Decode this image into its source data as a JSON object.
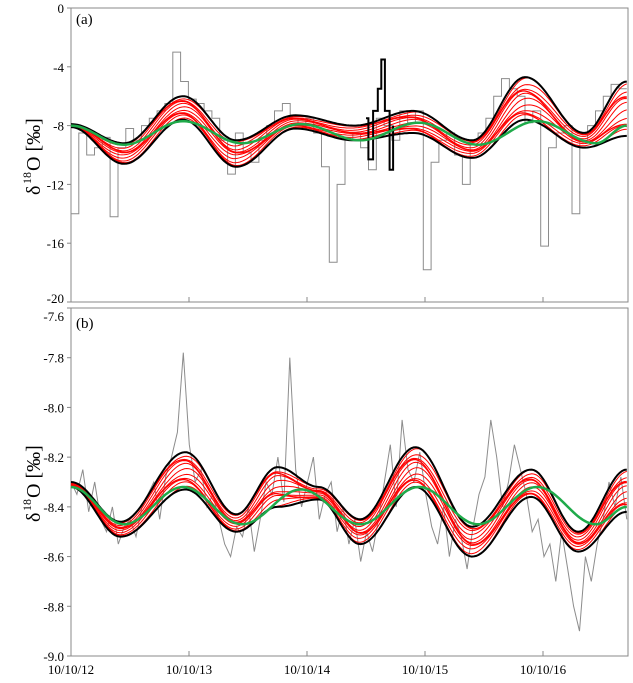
{
  "chart_data": [
    {
      "type": "line",
      "panel_label": "(a)",
      "ylabel": {
        "main": "δ",
        "sup": "18",
        "rest": "O [‰]"
      },
      "ylim": [
        -20,
        0
      ],
      "yticks": [
        0,
        -4,
        -8,
        -12,
        -16,
        -20
      ],
      "ytick_labels": [
        "0",
        "-4",
        "-8",
        "-12",
        "-16",
        "-20"
      ],
      "xlim_years": [
        0,
        4.71
      ],
      "colors": {
        "raw": "#8c8c8c",
        "ensemble": "#ff0000",
        "envelope": "#000000",
        "fit": "#1faa4a"
      },
      "raw_step_values": [
        -14,
        -8.5,
        -10,
        -9.5,
        -8.8,
        -14.2,
        -9.5,
        -8.2,
        -9,
        -8,
        -7.5,
        -7,
        -6.5,
        -3.0,
        -5,
        -6.2,
        -6.5,
        -7,
        -7.5,
        -9,
        -11.3,
        -8.5,
        -9.8,
        -10.5,
        -9,
        -8,
        -7,
        -6.5,
        -7.5,
        -8,
        -7.5,
        -8.5,
        -10.8,
        -17.3,
        -12,
        -9,
        -8.5,
        -9.5,
        -11,
        -7.5,
        -8,
        -9,
        -7,
        -7.8,
        -7,
        -17.8,
        -10.5,
        -9,
        -8.5,
        -10,
        -12,
        -9,
        -8.5,
        -7.5,
        -6,
        -4.8,
        -5.5,
        -6,
        -7.8,
        -7,
        -16.2,
        -9.5,
        -8.5,
        -8,
        -14,
        -9,
        -8,
        -7,
        -6,
        -5.2,
        -5.5
      ],
      "envelope": {
        "x": [
          0,
          0.45,
          0.95,
          1.4,
          1.9,
          2.4,
          2.9,
          3.4,
          3.85,
          4.35,
          4.71
        ],
        "upper": [
          -7.9,
          -9.2,
          -6.0,
          -9.0,
          -7.3,
          -8.0,
          -7.0,
          -9.0,
          -4.7,
          -8.5,
          -5.0
        ],
        "lower": [
          -8.1,
          -10.6,
          -7.6,
          -10.8,
          -8.2,
          -9.0,
          -8.5,
          -10.2,
          -7.6,
          -9.5,
          -8.7
        ]
      },
      "ensemble_members": 12,
      "black_spike": {
        "x": [
          2.5,
          2.52,
          2.56,
          2.6,
          2.63,
          2.66,
          2.7,
          2.73
        ],
        "y": [
          -7.5,
          -10.3,
          -7,
          -5.5,
          -3.5,
          -7,
          -11,
          -8
        ]
      },
      "fit": {
        "x": [
          0,
          0.45,
          0.95,
          1.45,
          1.95,
          2.45,
          2.95,
          3.45,
          3.95,
          4.45,
          4.71
        ],
        "y": [
          -8.0,
          -9.3,
          -7.7,
          -9.2,
          -7.9,
          -9.0,
          -7.8,
          -9.3,
          -7.7,
          -9.2,
          -8.0
        ]
      }
    },
    {
      "type": "line",
      "panel_label": "(b)",
      "ylabel": {
        "main": "δ",
        "sup": "18",
        "rest": "O [‰]"
      },
      "ylim": [
        -9.0,
        -7.6
      ],
      "yticks": [
        -7.6,
        -7.8,
        -8.0,
        -8.2,
        -8.4,
        -8.6,
        -8.8,
        -9.0
      ],
      "ytick_labels": [
        "-7.6",
        "-7.8",
        "-8.0",
        "-8.2",
        "-8.4",
        "-8.6",
        "-8.8",
        "-9.0"
      ],
      "xlim_years": [
        0,
        4.71
      ],
      "xtick_labels": [
        "10/10/12",
        "10/10/13",
        "10/10/14",
        "10/10/15",
        "10/10/16"
      ],
      "colors": {
        "raw": "#8c8c8c",
        "ensemble": "#ff0000",
        "envelope": "#000000",
        "fit": "#1faa4a"
      },
      "raw_values": [
        -8.3,
        -8.35,
        -8.25,
        -8.42,
        -8.3,
        -8.45,
        -8.5,
        -8.4,
        -8.55,
        -8.48,
        -8.45,
        -8.52,
        -8.4,
        -8.35,
        -8.3,
        -8.45,
        -8.28,
        -8.2,
        -8.1,
        -7.78,
        -8.15,
        -8.3,
        -8.25,
        -8.4,
        -8.35,
        -8.45,
        -8.55,
        -8.6,
        -8.48,
        -8.52,
        -8.4,
        -8.58,
        -8.45,
        -8.3,
        -8.35,
        -8.2,
        -8.38,
        -7.8,
        -8.25,
        -8.4,
        -8.3,
        -8.2,
        -8.45,
        -8.35,
        -8.3,
        -8.5,
        -8.4,
        -8.55,
        -8.45,
        -8.62,
        -8.5,
        -8.58,
        -8.45,
        -8.3,
        -8.15,
        -8.4,
        -8.05,
        -8.25,
        -8.3,
        -8.18,
        -8.35,
        -8.48,
        -8.55,
        -8.4,
        -8.6,
        -8.45,
        -8.52,
        -8.65,
        -8.48,
        -8.35,
        -8.28,
        -8.05,
        -8.2,
        -8.4,
        -8.3,
        -8.15,
        -8.25,
        -8.35,
        -8.5,
        -8.45,
        -8.6,
        -8.55,
        -8.7,
        -8.5,
        -8.65,
        -8.8,
        -8.9,
        -8.6,
        -8.7,
        -8.55,
        -8.45,
        -8.3,
        -8.4,
        -8.28,
        -8.45
      ],
      "envelope": {
        "x": [
          0,
          0.42,
          0.97,
          1.4,
          1.75,
          2.1,
          2.45,
          2.92,
          3.4,
          3.9,
          4.3,
          4.71
        ],
        "upper": [
          -8.3,
          -8.46,
          -8.18,
          -8.43,
          -8.24,
          -8.32,
          -8.45,
          -8.16,
          -8.48,
          -8.25,
          -8.5,
          -8.25
        ],
        "lower": [
          -8.32,
          -8.52,
          -8.33,
          -8.5,
          -8.4,
          -8.37,
          -8.55,
          -8.32,
          -8.6,
          -8.36,
          -8.58,
          -8.42
        ]
      },
      "ensemble_members": 12,
      "fit": {
        "x": [
          0,
          0.45,
          0.95,
          1.45,
          1.95,
          2.45,
          2.95,
          3.45,
          3.95,
          4.45,
          4.71
        ],
        "y": [
          -8.32,
          -8.47,
          -8.32,
          -8.47,
          -8.33,
          -8.47,
          -8.32,
          -8.47,
          -8.32,
          -8.47,
          -8.4
        ]
      }
    }
  ]
}
